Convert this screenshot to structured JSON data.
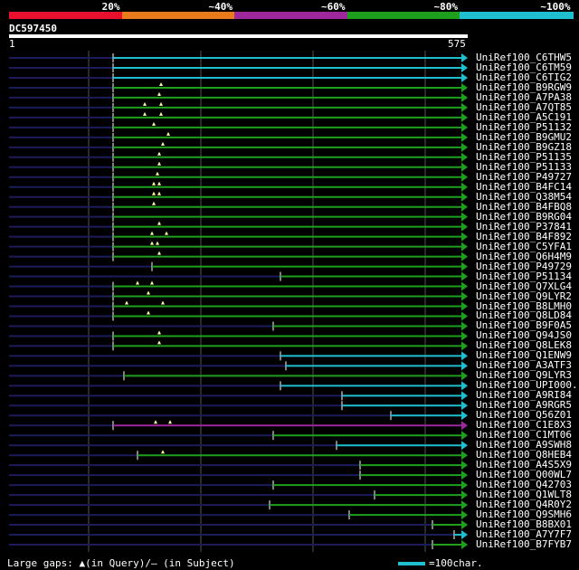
{
  "legend": {
    "segments": [
      {
        "label": "20%",
        "color": "#e8102c"
      },
      {
        "label": "~40%",
        "color": "#e87c1c"
      },
      {
        "label": "~60%",
        "color": "#9c289c"
      },
      {
        "label": "~80%",
        "color": "#1ea01e"
      },
      {
        "label": "~100%",
        "color": "#1fbfd0"
      }
    ]
  },
  "query": {
    "id": "DC597450",
    "start": "1",
    "end": "575",
    "length": 575
  },
  "hits": [
    {
      "name": "UniRef100_C6THW5",
      "color": "#1fbfd0",
      "start": 125,
      "gaps": []
    },
    {
      "name": "UniRef100_C6TM59",
      "color": "#1fbfd0",
      "start": 125,
      "gaps": []
    },
    {
      "name": "UniRef100_C6TIG2",
      "color": "#1fbfd0",
      "start": 125,
      "gaps": []
    },
    {
      "name": "UniRef100_B9RGW9",
      "color": "#1ea01e",
      "start": 125,
      "gaps": [
        178
      ]
    },
    {
      "name": "UniRef100_A7PA38",
      "color": "#1ea01e",
      "start": 125,
      "gaps": [
        176
      ]
    },
    {
      "name": "UniRef100_A7QT85",
      "color": "#1ea01e",
      "start": 125,
      "gaps": [
        160,
        178
      ]
    },
    {
      "name": "UniRef100_A5C191",
      "color": "#1ea01e",
      "start": 125,
      "gaps": [
        160,
        178
      ]
    },
    {
      "name": "UniRef100_P51132",
      "color": "#1ea01e",
      "start": 125,
      "gaps": [
        170
      ]
    },
    {
      "name": "UniRef100_B9GMU2",
      "color": "#1ea01e",
      "start": 125,
      "gaps": [
        186
      ]
    },
    {
      "name": "UniRef100_B9GZ18",
      "color": "#1ea01e",
      "start": 125,
      "gaps": [
        180
      ]
    },
    {
      "name": "UniRef100_P51135",
      "color": "#1ea01e",
      "start": 125,
      "gaps": [
        176
      ]
    },
    {
      "name": "UniRef100_P51133",
      "color": "#1ea01e",
      "start": 125,
      "gaps": [
        176
      ]
    },
    {
      "name": "UniRef100_P49727",
      "color": "#1ea01e",
      "start": 125,
      "gaps": [
        174
      ]
    },
    {
      "name": "UniRef100_B4FC14",
      "color": "#1ea01e",
      "start": 125,
      "gaps": [
        170,
        176
      ]
    },
    {
      "name": "UniRef100_Q38M54",
      "color": "#1ea01e",
      "start": 125,
      "gaps": [
        170,
        176
      ]
    },
    {
      "name": "UniRef100_B4FBQ8",
      "color": "#1ea01e",
      "start": 125,
      "gaps": [
        170
      ]
    },
    {
      "name": "UniRef100_B9RG04",
      "color": "#1ea01e",
      "start": 125,
      "gaps": []
    },
    {
      "name": "UniRef100_P37841",
      "color": "#1ea01e",
      "start": 125,
      "gaps": [
        176
      ]
    },
    {
      "name": "UniRef100_B4F892",
      "color": "#1ea01e",
      "start": 125,
      "gaps": [
        168,
        184
      ]
    },
    {
      "name": "UniRef100_C5YFA1",
      "color": "#1ea01e",
      "start": 125,
      "gaps": [
        168,
        174
      ]
    },
    {
      "name": "UniRef100_Q6H4M9",
      "color": "#1ea01e",
      "start": 125,
      "gaps": [
        176
      ]
    },
    {
      "name": "UniRef100_P49729",
      "color": "#1ea01e",
      "start": 168,
      "gaps": []
    },
    {
      "name": "UniRef100_P51134",
      "color": "#1ea01e",
      "start": 310,
      "gaps": []
    },
    {
      "name": "UniRef100_Q7XLG4",
      "color": "#1ea01e",
      "start": 125,
      "gaps": [
        152,
        168
      ]
    },
    {
      "name": "UniRef100_Q9LYR2",
      "color": "#1ea01e",
      "start": 125,
      "gaps": [
        164
      ]
    },
    {
      "name": "UniRef100_B8LMH0",
      "color": "#1ea01e",
      "start": 125,
      "gaps": [
        140,
        180
      ]
    },
    {
      "name": "UniRef100_Q8LD84",
      "color": "#1ea01e",
      "start": 125,
      "gaps": [
        164
      ]
    },
    {
      "name": "UniRef100_B9F0A5",
      "color": "#1ea01e",
      "start": 302,
      "gaps": []
    },
    {
      "name": "UniRef100_Q94JS0",
      "color": "#1ea01e",
      "start": 125,
      "gaps": [
        176
      ]
    },
    {
      "name": "UniRef100_Q8LEK8",
      "color": "#1ea01e",
      "start": 125,
      "gaps": [
        176
      ]
    },
    {
      "name": "UniRef100_Q1ENW9",
      "color": "#1fbfd0",
      "start": 310,
      "gaps": []
    },
    {
      "name": "UniRef100_A3ATF3",
      "color": "#1fbfd0",
      "start": 316,
      "gaps": []
    },
    {
      "name": "UniRef100_Q9LYR3",
      "color": "#1ea01e",
      "start": 137,
      "gaps": []
    },
    {
      "name": "UniRef100_UPI000..",
      "color": "#1fbfd0",
      "start": 310,
      "gaps": []
    },
    {
      "name": "UniRef100_A9RI84",
      "color": "#1fbfd0",
      "start": 378,
      "gaps": []
    },
    {
      "name": "UniRef100_A9RGR5",
      "color": "#1fbfd0",
      "start": 378,
      "gaps": []
    },
    {
      "name": "UniRef100_Q56Z01",
      "color": "#1fbfd0",
      "start": 432,
      "gaps": []
    },
    {
      "name": "UniRef100_C1E8X3",
      "color": "#9c289c",
      "start": 125,
      "gaps": [
        172,
        188
      ]
    },
    {
      "name": "UniRef100_C1MT06",
      "color": "#1ea01e",
      "start": 302,
      "gaps": []
    },
    {
      "name": "UniRef100_A9SWH8",
      "color": "#1fbfd0",
      "start": 372,
      "gaps": []
    },
    {
      "name": "UniRef100_Q8HEB4",
      "color": "#1ea01e",
      "start": 152,
      "gaps": [
        180
      ]
    },
    {
      "name": "UniRef100_A4S5X9",
      "color": "#1ea01e",
      "start": 398,
      "gaps": []
    },
    {
      "name": "UniRef100_Q00WL7",
      "color": "#1ea01e",
      "start": 398,
      "gaps": []
    },
    {
      "name": "UniRef100_Q42703",
      "color": "#1ea01e",
      "start": 302,
      "gaps": []
    },
    {
      "name": "UniRef100_Q1WLT8",
      "color": "#1ea01e",
      "start": 414,
      "gaps": []
    },
    {
      "name": "UniRef100_Q4R0Y2",
      "color": "#1ea01e",
      "start": 298,
      "gaps": []
    },
    {
      "name": "UniRef100_Q9SMH6",
      "color": "#1ea01e",
      "start": 386,
      "gaps": []
    },
    {
      "name": "UniRef100_B8BX01",
      "color": "#1ea01e",
      "start": 478,
      "gaps": []
    },
    {
      "name": "UniRef100_A7Y7F7",
      "color": "#1fbfd0",
      "start": 502,
      "gaps": []
    },
    {
      "name": "UniRef100_B7FYB7",
      "color": "#1ea01e",
      "start": 478,
      "gaps": []
    }
  ],
  "footer": {
    "gaps_label": "Large gaps: ▲(in Query)/– (in Subject)",
    "scale_label": "=100char."
  }
}
